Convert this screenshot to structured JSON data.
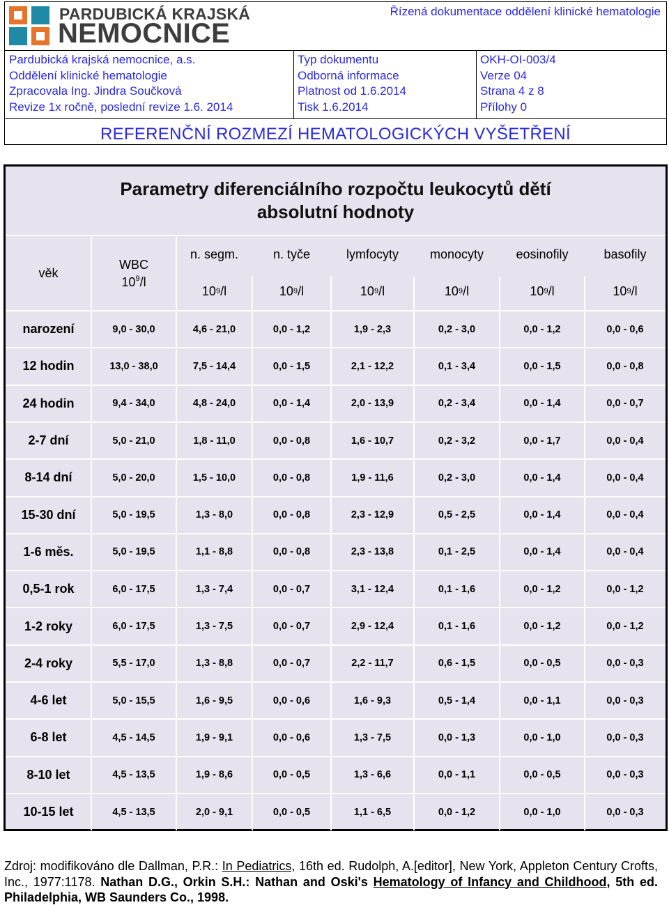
{
  "header": {
    "logo_line1": "PARDUBICKÁ KRAJSKÁ",
    "logo_line2": "NEMOCNICE",
    "doc_type_top": "Řízená dokumentace oddělení klinické hematologie",
    "col1": [
      "Pardubická krajská nemocnice, a.s.",
      "Oddělení klinické hematologie",
      "Zpracovala Ing. Jindra Součková",
      "Revize 1x ročně, poslední revize 1.6. 2014"
    ],
    "col2": [
      "Typ dokumentu",
      "Odborná informace",
      "Platnost od 1.6.2014",
      "Tisk 1.6.2014"
    ],
    "col3": [
      "OKH-OI-003/4",
      "Verze 04",
      "Strana 4 z 8",
      "Přílohy 0"
    ],
    "title": "REFERENČNÍ ROZMEZÍ HEMATOLOGICKÝCH VYŠETŘENÍ",
    "accent_color": "#2a2ae0"
  },
  "table": {
    "title_line1": "Parametry diferenciálního rozpočtu leukocytů dětí",
    "title_line2": "absolutní hodnoty",
    "head_age": "věk",
    "head_wbc": "WBC",
    "unit_base": "10",
    "unit_exp": "9",
    "unit_suffix": "/l",
    "columns": [
      "n. segm.",
      "n. tyče",
      "lymfocyty",
      "monocyty",
      "eosinofily",
      "basofily"
    ],
    "rows": [
      {
        "age": "narození",
        "values": [
          "9,0 - 30,0",
          "4,6 - 21,0",
          "0,0 - 1,2",
          "1,9 - 2,3",
          "0,2 - 3,0",
          "0,0 - 1,2",
          "0,0 - 0,6"
        ]
      },
      {
        "age": "12 hodin",
        "values": [
          "13,0 - 38,0",
          "7,5 - 14,4",
          "0,0 - 1,5",
          "2,1 - 12,2",
          "0,1 - 3,4",
          "0,0 - 1,5",
          "0,0 - 0,8"
        ]
      },
      {
        "age": "24 hodin",
        "values": [
          "9,4 - 34,0",
          "4,8 - 24,0",
          "0,0 - 1,4",
          "2,0 - 13,9",
          "0,2 - 3,4",
          "0,0 - 1,4",
          "0,0 - 0,7"
        ]
      },
      {
        "age": "2-7 dní",
        "values": [
          "5,0 - 21,0",
          "1,8 - 11,0",
          "0,0 - 0,8",
          "1,6 - 10,7",
          "0,2 - 3,2",
          "0,0 - 1,7",
          "0,0 - 0,4"
        ]
      },
      {
        "age": "8-14 dní",
        "values": [
          "5,0 - 20,0",
          "1,5 - 10,0",
          "0,0 - 0,8",
          "1,9 - 11,6",
          "0,2 - 3,0",
          "0,0 - 1,4",
          "0,0 - 0,4"
        ]
      },
      {
        "age": "15-30 dní",
        "values": [
          "5,0 - 19,5",
          "1,3 - 8,0",
          "0,0 - 0,8",
          "2,3 - 12,9",
          "0,5 - 2,5",
          "0,0 - 1,4",
          "0,0 - 0,4"
        ]
      },
      {
        "age": "1-6 měs.",
        "values": [
          "5,0 - 19,5",
          "1,1 - 8,8",
          "0,0 - 0,8",
          "2,3 - 13,8",
          "0,1 - 2,5",
          "0,0 - 1,4",
          "0,0 - 0,4"
        ]
      },
      {
        "age": "0,5-1 rok",
        "values": [
          "6,0 - 17,5",
          "1,3 - 7,4",
          "0,0 - 0,7",
          "3,1 - 12,4",
          "0,1 - 1,6",
          "0,0 - 1,2",
          "0,0 - 1,2"
        ]
      },
      {
        "age": "1-2 roky",
        "values": [
          "6,0 - 17,5",
          "1,3 - 7,5",
          "0,0 - 0,7",
          "2,9 - 12,4",
          "0,1 - 1,6",
          "0,0 - 1,2",
          "0,0 - 1,2"
        ]
      },
      {
        "age": "2-4 roky",
        "values": [
          "5,5 - 17,0",
          "1,3 - 8,8",
          "0,0 - 0,7",
          "2,2 - 11,7",
          "0,6 - 1,5",
          "0,0 - 0,5",
          "0,0 - 0,3"
        ]
      },
      {
        "age": "4-6 let",
        "values": [
          "5,0 - 15,5",
          "1,6 - 9,5",
          "0,0 - 0,6",
          "1,6 - 9,3",
          "0,5 - 1,4",
          "0,0 - 1,1",
          "0,0 - 0,3"
        ]
      },
      {
        "age": "6-8 let",
        "values": [
          "4,5 - 14,5",
          "1,9 - 9,1",
          "0,0 - 0,6",
          "1,3 - 7,5",
          "0,0 - 1,3",
          "0,0 - 1,0",
          "0,0 - 0,3"
        ]
      },
      {
        "age": "8-10 let",
        "values": [
          "4,5 - 13,5",
          "1,9 - 8,6",
          "0,0 - 0,5",
          "1,3 - 6,6",
          "0,0 - 1,1",
          "0,0 - 0,5",
          "0,0 - 0,3"
        ]
      },
      {
        "age": "10-15 let",
        "values": [
          "4,5 - 13,5",
          "2,0 - 9,1",
          "0,0 - 0,5",
          "1,1 - 6,5",
          "0,0 - 1,2",
          "0,0 - 1,0",
          "0,0 - 0,3"
        ]
      }
    ],
    "background_color": "#e6e2ee"
  },
  "footer": {
    "p1": "Zdroj: modifikováno dle Dallman, P.R.: ",
    "p2": "In Pediatrics,",
    "p3": " 16th ed. Rudolph, A.[editor], New York, Appleton Century Crofts, Inc., 1977:1178. ",
    "p4": "Nathan D.G., Orkin S.H.: Nathan and Oski's ",
    "p5": "Hematology of Infancy and Childhood,",
    "p6": " 5th ed. Philadelphia, WB Saunders Co., 1998."
  }
}
